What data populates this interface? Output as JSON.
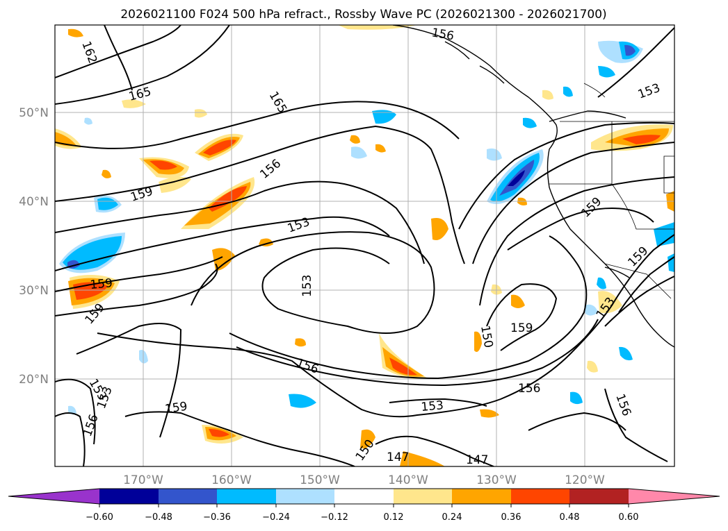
{
  "title": "2026021100 F024 500 hPa refract., Rossby Wave PC (2026021300 - 2026021700)",
  "map": {
    "lat_labels": [
      "50°N",
      "40°N",
      "30°N",
      "20°N"
    ],
    "lon_labels": [
      "170°W",
      "160°W",
      "150°W",
      "140°W",
      "130°W",
      "120°W"
    ],
    "contour_labels": [
      "162",
      "165",
      "165",
      "159",
      "156",
      "159",
      "153",
      "153",
      "153",
      "159",
      "156",
      "159",
      "150",
      "159",
      "156",
      "159",
      "153",
      "156",
      "153",
      "153",
      "156",
      "150",
      "147",
      "147",
      "159",
      "156",
      "153",
      "159"
    ]
  },
  "colorbar": {
    "ticks": [
      "−0.60",
      "−0.48",
      "−0.36",
      "−0.24",
      "−0.12",
      "0.12",
      "0.24",
      "0.36",
      "0.48",
      "0.60"
    ],
    "colors": [
      "#9933cc",
      "#000099",
      "#3355cc",
      "#00bbff",
      "#aee0ff",
      "#ffffff",
      "#ffe68c",
      "#ffa500",
      "#ff4500",
      "#b22222",
      "#ff88aa"
    ]
  }
}
